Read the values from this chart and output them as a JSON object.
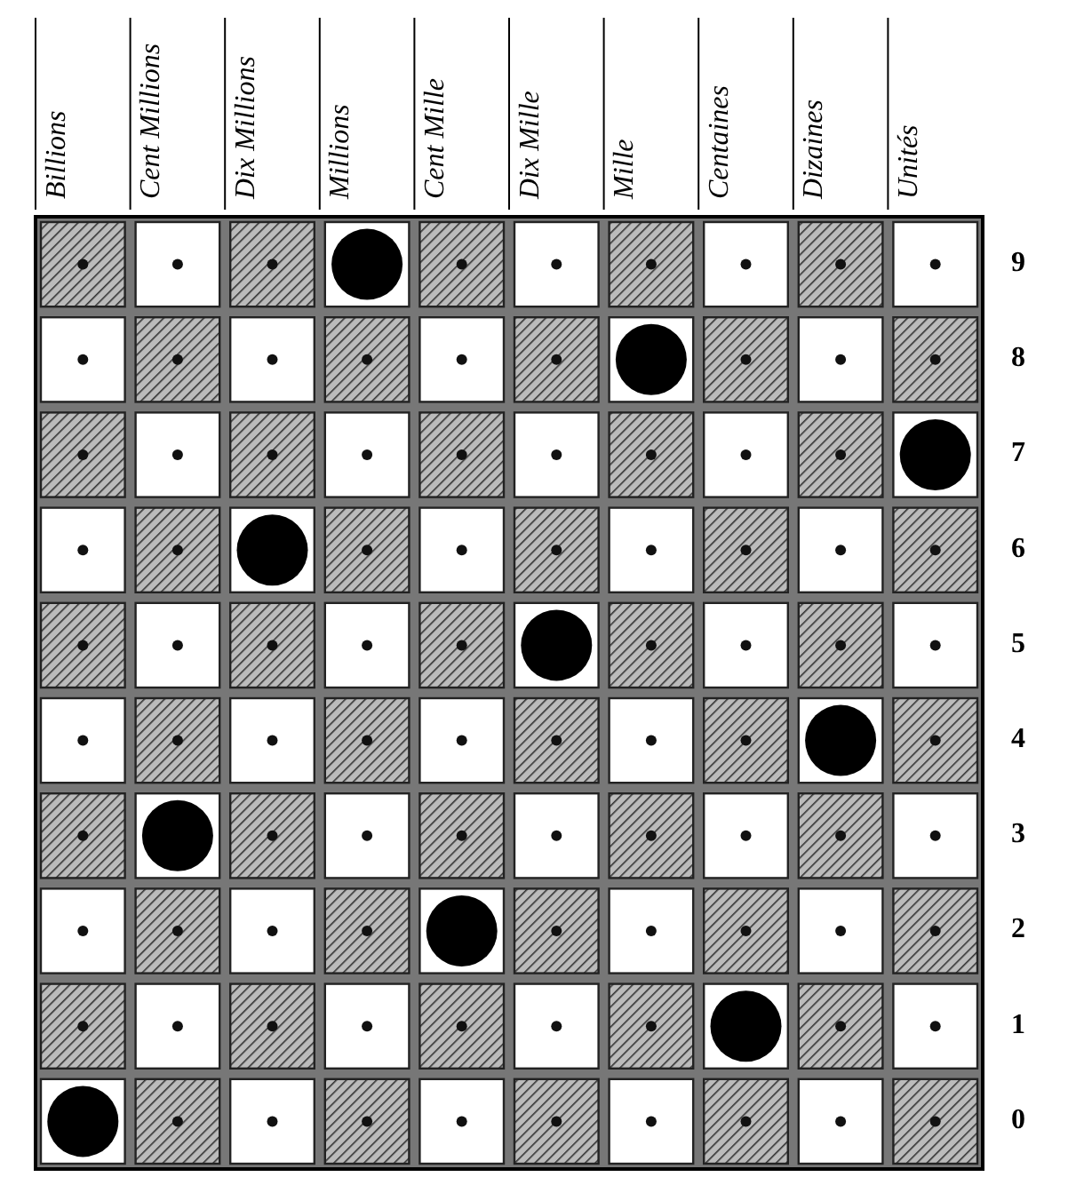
{
  "chart_data": {
    "type": "scatter",
    "categories": [
      "Billions",
      "Cent Millions",
      "Dix Millions",
      "Millions",
      "Cent Mille",
      "Dix Mille",
      "Mille",
      "Centaines",
      "Dizaines",
      "Unités"
    ],
    "values": [
      0,
      3,
      6,
      9,
      2,
      5,
      8,
      1,
      4,
      7
    ],
    "color": "#000000",
    "marker": "circle",
    "ylim": [
      -0.5,
      9.5
    ],
    "yticks": [
      0,
      1,
      2,
      3,
      4,
      5,
      6,
      7,
      8,
      9
    ]
  }
}
